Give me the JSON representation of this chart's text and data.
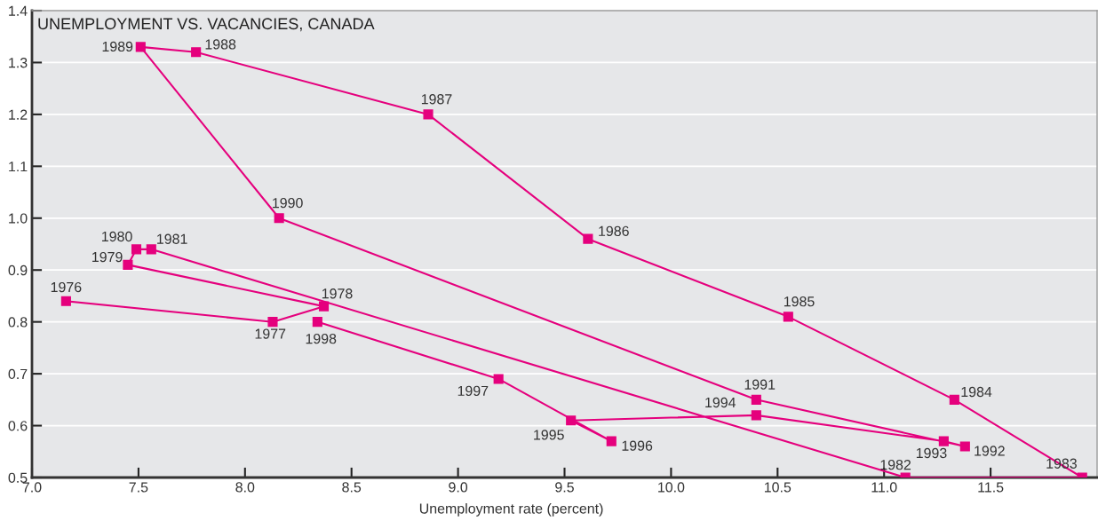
{
  "chart_data": {
    "type": "line",
    "title": "UNEMPLOYMENT VS. VACANCIES, CANADA",
    "xlabel": "Unemployment rate (percent)",
    "series": [
      {
        "color": "#e5007d",
        "x": [
          7.16,
          8.13,
          8.37,
          7.45,
          7.49,
          7.56,
          11.1,
          11.93,
          11.33,
          10.55,
          9.61,
          8.86,
          7.77,
          7.51,
          8.16,
          10.4,
          11.38,
          11.28,
          10.4,
          9.53,
          9.72,
          9.19,
          8.34
        ],
        "values": [
          0.84,
          0.8,
          0.83,
          0.91,
          0.94,
          0.94,
          0.5,
          0.5,
          0.65,
          0.81,
          0.96,
          1.2,
          1.32,
          1.33,
          1.0,
          0.65,
          0.56,
          0.57,
          0.62,
          0.61,
          0.57,
          0.69,
          0.8
        ]
      }
    ],
    "annotations": [
      {
        "text": "1976",
        "x": 7.16,
        "y": 0.84
      },
      {
        "text": "1977",
        "x": 8.13,
        "y": 0.8
      },
      {
        "text": "1978",
        "x": 8.37,
        "y": 0.83
      },
      {
        "text": "1979",
        "x": 7.45,
        "y": 0.91
      },
      {
        "text": "1980",
        "x": 7.49,
        "y": 0.94
      },
      {
        "text": "1981",
        "x": 7.56,
        "y": 0.94
      },
      {
        "text": "1982",
        "x": 11.1,
        "y": 0.5
      },
      {
        "text": "1983",
        "x": 11.93,
        "y": 0.5
      },
      {
        "text": "1984",
        "x": 11.33,
        "y": 0.65
      },
      {
        "text": "1985",
        "x": 10.55,
        "y": 0.81
      },
      {
        "text": "1986",
        "x": 9.61,
        "y": 0.96
      },
      {
        "text": "1987",
        "x": 8.86,
        "y": 1.2
      },
      {
        "text": "1988",
        "x": 7.77,
        "y": 1.32
      },
      {
        "text": "1989",
        "x": 7.51,
        "y": 1.33
      },
      {
        "text": "1990",
        "x": 8.16,
        "y": 1.0
      },
      {
        "text": "1991",
        "x": 10.4,
        "y": 0.65
      },
      {
        "text": "1992",
        "x": 11.38,
        "y": 0.56
      },
      {
        "text": "1993",
        "x": 11.28,
        "y": 0.57
      },
      {
        "text": "1994",
        "x": 10.4,
        "y": 0.62
      },
      {
        "text": "1995",
        "x": 9.53,
        "y": 0.61
      },
      {
        "text": "1996",
        "x": 9.72,
        "y": 0.57
      },
      {
        "text": "1997",
        "x": 9.19,
        "y": 0.69
      },
      {
        "text": "1998",
        "x": 8.34,
        "y": 0.8
      }
    ],
    "xlim": [
      7.0,
      12.0
    ],
    "ylim": [
      0.5,
      1.4
    ],
    "xticks": [
      {
        "value": 7,
        "label": "7.0"
      },
      7.5,
      {
        "value": 8,
        "label": "8.0"
      },
      8.5,
      {
        "value": 9,
        "label": "9.0"
      },
      9.5,
      {
        "value": 10,
        "label": "10.0"
      },
      10.5,
      {
        "value": 11,
        "label": "11.0"
      },
      11.5
    ],
    "yticks": [
      0.5,
      0.6,
      0.7,
      0.8,
      0.9,
      {
        "value": 1,
        "label": "1.0"
      },
      1.1,
      1.2,
      1.3,
      1.4
    ],
    "grid": "y",
    "marker": "square",
    "line_style": "solid"
  }
}
